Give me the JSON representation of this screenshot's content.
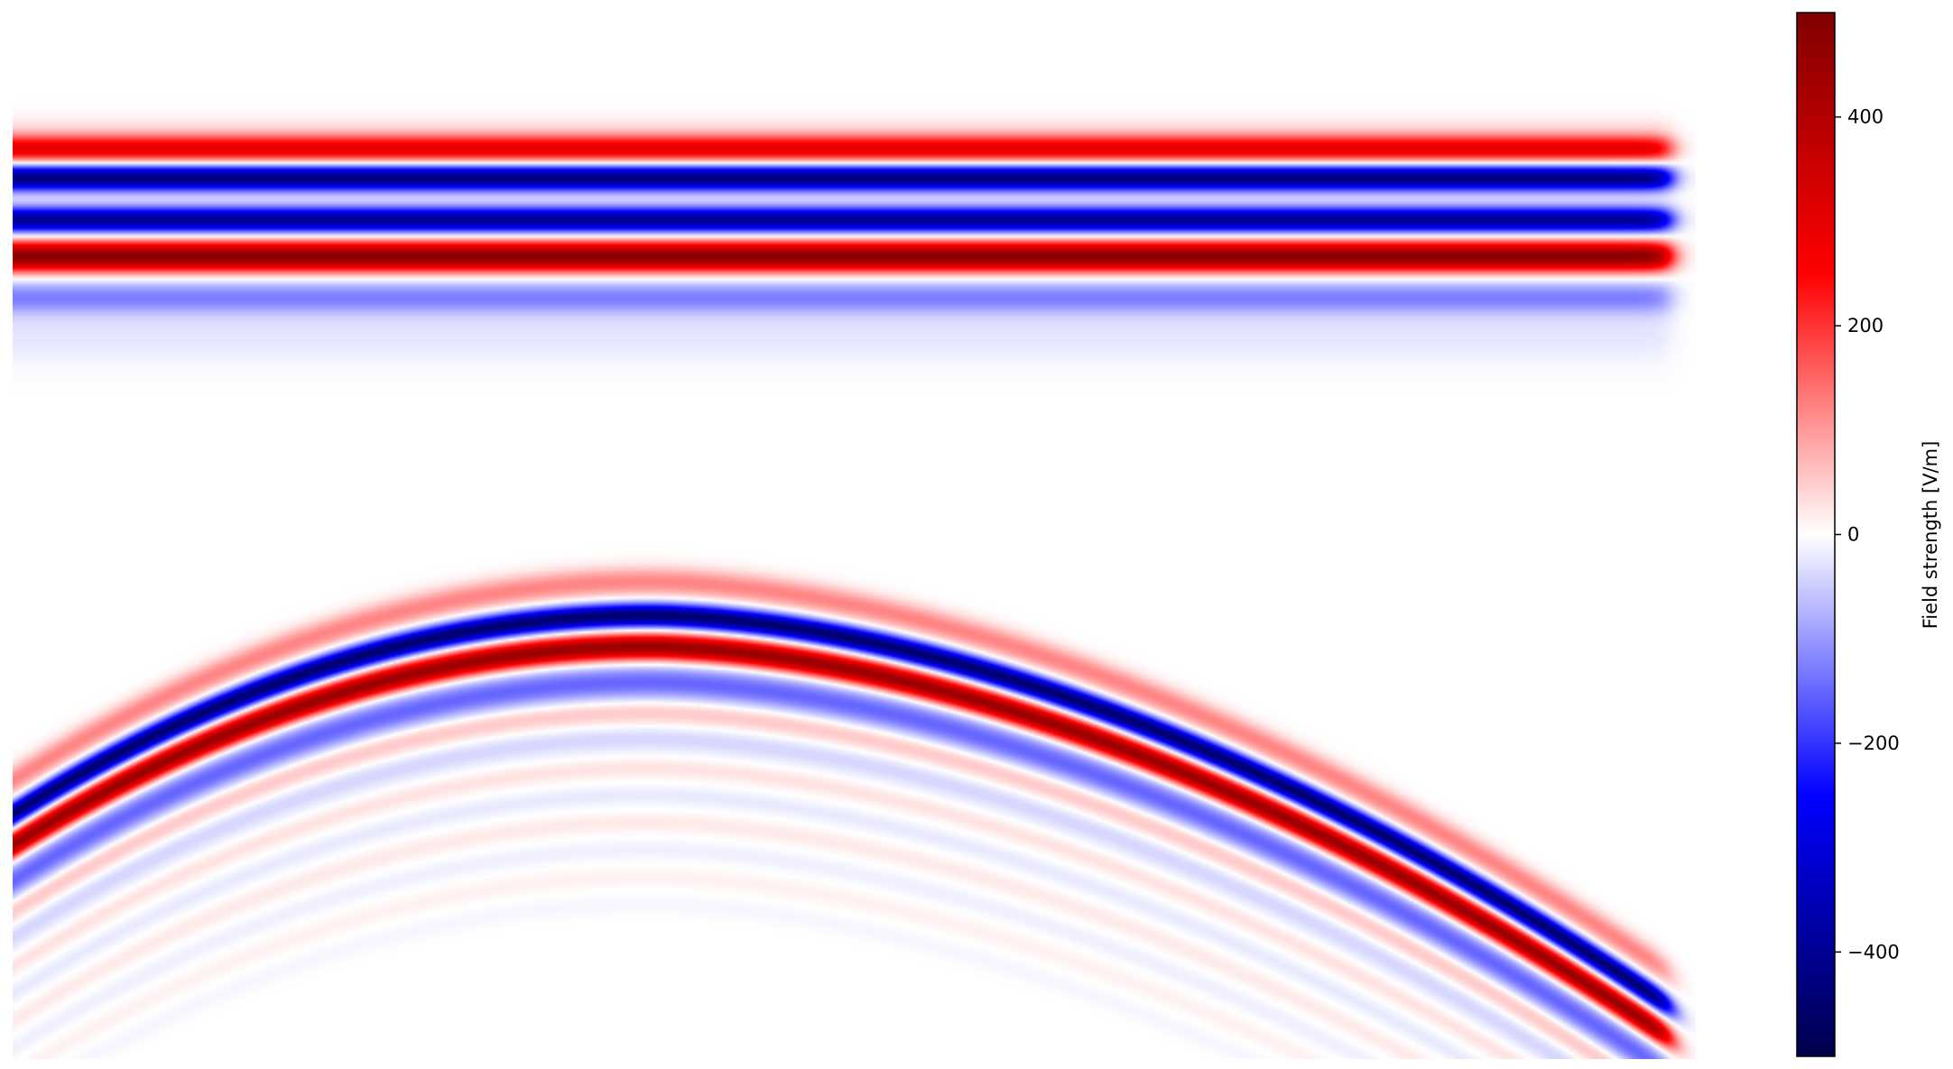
{
  "chart_data": {
    "type": "heatmap",
    "title": "",
    "xlabel": "",
    "ylabel": "",
    "axes_visible": false,
    "colormap": "seismic",
    "colormap_stops": [
      "#00004c",
      "#0000ff",
      "#ffffff",
      "#ff0000",
      "#800000"
    ],
    "value_range": [
      -500,
      500
    ],
    "colorbar": {
      "label": "Field strength [V/m]",
      "ticks": [
        400,
        200,
        0,
        -200,
        -400
      ],
      "tick_labels": [
        "400",
        "200",
        "0",
        "−200",
        "−400"
      ],
      "position": "right"
    },
    "features": [
      {
        "name": "planar wavefront",
        "shape": "horizontal bands",
        "band_peaks_v_per_m": [
          300,
          -430,
          -400,
          480,
          -120
        ]
      },
      {
        "name": "curved wavefront",
        "shape": "arc",
        "band_peaks_v_per_m": [
          120,
          -450,
          450,
          -150,
          60,
          -40
        ]
      }
    ]
  }
}
